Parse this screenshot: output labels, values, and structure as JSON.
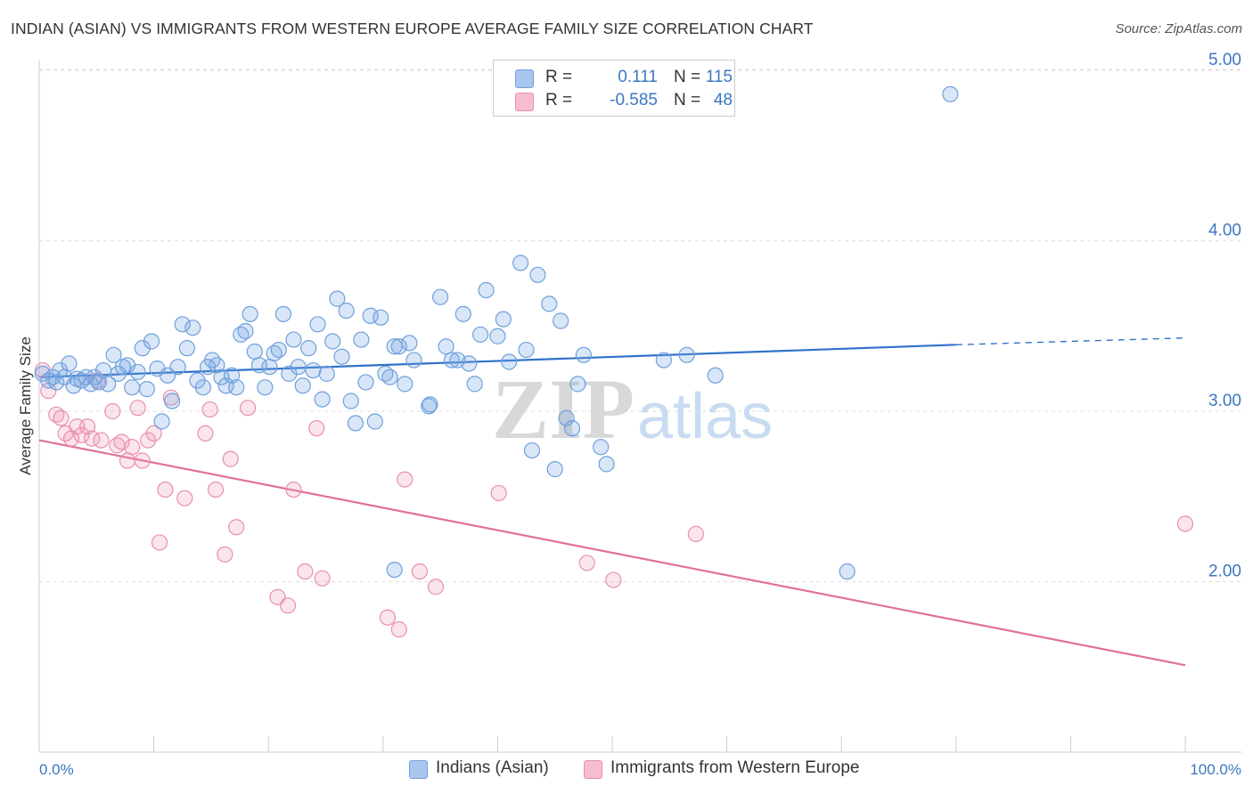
{
  "title": "INDIAN (ASIAN) VS IMMIGRANTS FROM WESTERN EUROPE AVERAGE FAMILY SIZE CORRELATION CHART",
  "source": "Source: ZipAtlas.com",
  "watermark": "ZIPatlas",
  "colors": {
    "blue": "#6fa0dc",
    "blue_fill": "rgba(120,165,225,0.28)",
    "blue_line": "#2f72c9",
    "pink": "#e98fae",
    "pink_fill": "rgba(240,150,180,0.25)",
    "pink_line": "#e0709a",
    "tick_text": "#3b78c3",
    "grid": "#dddddd"
  },
  "legend_top": {
    "rows": [
      {
        "r_label": "R =",
        "r_value": "0.111",
        "n_label": "N =",
        "n_value": "115",
        "color": "#a9c6ee"
      },
      {
        "r_label": "R =",
        "r_value": "-0.585",
        "n_label": "N =",
        "n_value": "48",
        "color": "#f6bccf"
      }
    ]
  },
  "legend_bottom": [
    {
      "label": "Indians (Asian)",
      "color": "#a9c6ee"
    },
    {
      "label": "Immigrants from Western Europe",
      "color": "#f6bccf"
    }
  ],
  "chart_data": {
    "type": "scatter",
    "title": "INDIAN (ASIAN) VS IMMIGRANTS FROM WESTERN EUROPE AVERAGE FAMILY SIZE CORRELATION CHART",
    "xlabel": "",
    "ylabel": "Average Family Size",
    "xlim": [
      0,
      100
    ],
    "ylim": [
      1.05,
      5.15
    ],
    "x_tick_labels": [
      "0.0%",
      "100.0%"
    ],
    "y_ticks": [
      2.0,
      3.0,
      4.0,
      5.0
    ],
    "y_tick_labels": [
      "2.00",
      "3.00",
      "4.00",
      "5.00"
    ],
    "grid": "horizontal dashed",
    "legend_position": "top-center and bottom",
    "series": [
      {
        "name": "Indians (Asian)",
        "stats": {
          "R": 0.111,
          "N": 115
        },
        "trend": {
          "x0": 0,
          "y0": 3.2,
          "x1": 80,
          "y1": 3.39,
          "dashed_to_x": 100,
          "dashed_to_y": 3.43
        },
        "points": [
          [
            0.3,
            3.22
          ],
          [
            0.8,
            3.18
          ],
          [
            1.2,
            3.2
          ],
          [
            1.5,
            3.17
          ],
          [
            1.8,
            3.24
          ],
          [
            2.2,
            3.2
          ],
          [
            2.6,
            3.28
          ],
          [
            3.0,
            3.15
          ],
          [
            3.3,
            3.19
          ],
          [
            3.7,
            3.18
          ],
          [
            4.1,
            3.2
          ],
          [
            4.5,
            3.16
          ],
          [
            4.8,
            3.2
          ],
          [
            5.2,
            3.17
          ],
          [
            5.6,
            3.24
          ],
          [
            6.0,
            3.16
          ],
          [
            6.5,
            3.33
          ],
          [
            6.9,
            3.22
          ],
          [
            7.3,
            3.26
          ],
          [
            7.7,
            3.27
          ],
          [
            8.1,
            3.14
          ],
          [
            8.6,
            3.23
          ],
          [
            9.0,
            3.37
          ],
          [
            9.4,
            3.13
          ],
          [
            9.8,
            3.41
          ],
          [
            10.3,
            3.25
          ],
          [
            10.7,
            2.94
          ],
          [
            11.2,
            3.21
          ],
          [
            11.6,
            3.06
          ],
          [
            12.1,
            3.26
          ],
          [
            12.5,
            3.51
          ],
          [
            12.9,
            3.37
          ],
          [
            13.4,
            3.49
          ],
          [
            13.8,
            3.18
          ],
          [
            14.3,
            3.14
          ],
          [
            14.7,
            3.26
          ],
          [
            15.1,
            3.3
          ],
          [
            15.5,
            3.27
          ],
          [
            15.9,
            3.2
          ],
          [
            16.3,
            3.15
          ],
          [
            16.8,
            3.21
          ],
          [
            17.2,
            3.14
          ],
          [
            17.6,
            3.45
          ],
          [
            18.0,
            3.47
          ],
          [
            18.4,
            3.57
          ],
          [
            18.8,
            3.35
          ],
          [
            19.2,
            3.27
          ],
          [
            19.7,
            3.14
          ],
          [
            20.1,
            3.26
          ],
          [
            20.5,
            3.34
          ],
          [
            20.9,
            3.36
          ],
          [
            21.3,
            3.57
          ],
          [
            21.8,
            3.22
          ],
          [
            22.2,
            3.42
          ],
          [
            22.6,
            3.26
          ],
          [
            23.0,
            3.15
          ],
          [
            23.5,
            3.37
          ],
          [
            23.9,
            3.24
          ],
          [
            24.3,
            3.51
          ],
          [
            24.7,
            3.07
          ],
          [
            25.1,
            3.22
          ],
          [
            25.6,
            3.41
          ],
          [
            26.0,
            3.66
          ],
          [
            26.4,
            3.32
          ],
          [
            26.8,
            3.59
          ],
          [
            27.2,
            3.06
          ],
          [
            27.6,
            2.93
          ],
          [
            28.1,
            3.42
          ],
          [
            28.5,
            3.17
          ],
          [
            28.9,
            3.56
          ],
          [
            29.3,
            2.94
          ],
          [
            29.8,
            3.55
          ],
          [
            30.2,
            3.22
          ],
          [
            30.6,
            3.2
          ],
          [
            31.0,
            3.38
          ],
          [
            31.4,
            3.38
          ],
          [
            31.9,
            3.16
          ],
          [
            32.3,
            3.4
          ],
          [
            32.7,
            3.3
          ],
          [
            34.0,
            3.03
          ],
          [
            35.0,
            3.67
          ],
          [
            35.5,
            3.38
          ],
          [
            36.0,
            3.3
          ],
          [
            36.5,
            3.3
          ],
          [
            37.0,
            3.57
          ],
          [
            37.5,
            3.28
          ],
          [
            38.0,
            3.16
          ],
          [
            38.5,
            3.45
          ],
          [
            39.0,
            3.71
          ],
          [
            40.0,
            3.44
          ],
          [
            40.5,
            3.54
          ],
          [
            41.0,
            3.29
          ],
          [
            42.0,
            3.87
          ],
          [
            42.5,
            3.36
          ],
          [
            43.0,
            2.77
          ],
          [
            43.5,
            3.8
          ],
          [
            44.5,
            3.63
          ],
          [
            45.5,
            3.53
          ],
          [
            46.0,
            2.96
          ],
          [
            46.5,
            2.9
          ],
          [
            47.0,
            3.16
          ],
          [
            47.5,
            3.33
          ],
          [
            49.0,
            2.79
          ],
          [
            49.5,
            2.69
          ],
          [
            54.5,
            3.3
          ],
          [
            56.5,
            3.33
          ],
          [
            59.0,
            3.21
          ],
          [
            79.5,
            4.86
          ],
          [
            31.0,
            2.07
          ],
          [
            70.5,
            2.06
          ],
          [
            34.1,
            3.04
          ],
          [
            45.0,
            2.66
          ]
        ]
      },
      {
        "name": "Immigrants from Western Europe",
        "stats": {
          "R": -0.585,
          "N": 48
        },
        "trend": {
          "x0": 0,
          "y0": 2.83,
          "x1": 100,
          "y1": 1.51
        },
        "points": [
          [
            0.3,
            3.24
          ],
          [
            0.8,
            3.12
          ],
          [
            1.5,
            2.98
          ],
          [
            1.9,
            2.96
          ],
          [
            2.3,
            2.87
          ],
          [
            2.8,
            2.84
          ],
          [
            3.3,
            2.91
          ],
          [
            3.7,
            2.86
          ],
          [
            4.2,
            2.91
          ],
          [
            4.6,
            2.84
          ],
          [
            5.1,
            3.18
          ],
          [
            5.4,
            2.83
          ],
          [
            6.4,
            3.0
          ],
          [
            6.8,
            2.8
          ],
          [
            7.2,
            2.82
          ],
          [
            7.7,
            2.71
          ],
          [
            8.1,
            2.79
          ],
          [
            8.6,
            3.02
          ],
          [
            9.0,
            2.71
          ],
          [
            9.5,
            2.83
          ],
          [
            10.0,
            2.87
          ],
          [
            10.5,
            2.23
          ],
          [
            11.0,
            2.54
          ],
          [
            11.5,
            3.08
          ],
          [
            12.7,
            2.49
          ],
          [
            14.5,
            2.87
          ],
          [
            14.9,
            3.01
          ],
          [
            15.4,
            2.54
          ],
          [
            16.2,
            2.16
          ],
          [
            16.7,
            2.72
          ],
          [
            17.2,
            2.32
          ],
          [
            18.2,
            3.02
          ],
          [
            20.8,
            1.91
          ],
          [
            21.7,
            1.86
          ],
          [
            22.2,
            2.54
          ],
          [
            23.2,
            2.06
          ],
          [
            24.2,
            2.9
          ],
          [
            24.7,
            2.02
          ],
          [
            30.4,
            1.79
          ],
          [
            31.4,
            1.72
          ],
          [
            31.9,
            2.6
          ],
          [
            33.2,
            2.06
          ],
          [
            34.6,
            1.97
          ],
          [
            40.1,
            2.52
          ],
          [
            47.8,
            2.11
          ],
          [
            50.1,
            2.01
          ],
          [
            57.3,
            2.28
          ],
          [
            100,
            2.34
          ]
        ]
      }
    ]
  }
}
